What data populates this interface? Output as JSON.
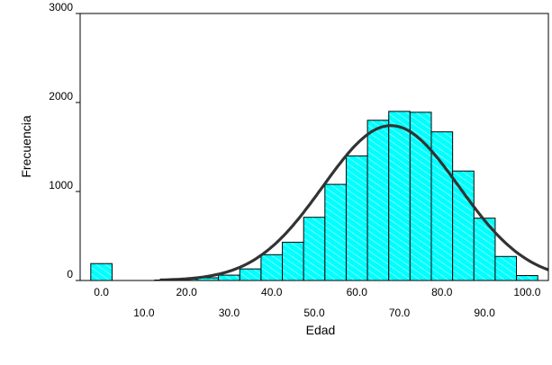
{
  "chart_data": {
    "type": "bar",
    "xlabel": "Edad",
    "ylabel": "Frecuencia",
    "xlim": [
      -5,
      105
    ],
    "ylim": [
      0,
      3000
    ],
    "y_ticks": [
      {
        "value": 3000,
        "label": "3000"
      },
      {
        "value": 2000,
        "label": "2000"
      },
      {
        "value": 1000,
        "label": "1000"
      },
      {
        "value": 0,
        "label": "0"
      }
    ],
    "x_ticks_row1": [
      {
        "value": 0,
        "label": "0.0"
      },
      {
        "value": 20,
        "label": "20.0"
      },
      {
        "value": 40,
        "label": "40.0"
      },
      {
        "value": 60,
        "label": "60.0"
      },
      {
        "value": 80,
        "label": "80.0"
      },
      {
        "value": 100,
        "label": "100.0"
      }
    ],
    "x_ticks_row2": [
      {
        "value": 10,
        "label": "10.0"
      },
      {
        "value": 30,
        "label": "30.0"
      },
      {
        "value": 50,
        "label": "50.0"
      },
      {
        "value": 70,
        "label": "70.0"
      },
      {
        "value": 90,
        "label": "90.0"
      }
    ],
    "bin_width": 5,
    "bars": [
      {
        "x": 0,
        "value": 190
      },
      {
        "x": 5,
        "value": 0
      },
      {
        "x": 10,
        "value": 0
      },
      {
        "x": 15,
        "value": 5
      },
      {
        "x": 20,
        "value": 15
      },
      {
        "x": 25,
        "value": 30
      },
      {
        "x": 30,
        "value": 60
      },
      {
        "x": 35,
        "value": 130
      },
      {
        "x": 40,
        "value": 290
      },
      {
        "x": 45,
        "value": 430
      },
      {
        "x": 50,
        "value": 710
      },
      {
        "x": 55,
        "value": 1080
      },
      {
        "x": 60,
        "value": 1400
      },
      {
        "x": 65,
        "value": 1800
      },
      {
        "x": 70,
        "value": 1900
      },
      {
        "x": 75,
        "value": 1890
      },
      {
        "x": 80,
        "value": 1670
      },
      {
        "x": 85,
        "value": 1230
      },
      {
        "x": 90,
        "value": 700
      },
      {
        "x": 95,
        "value": 270
      },
      {
        "x": 100,
        "value": 55
      }
    ],
    "normal_curve": {
      "mean": 68,
      "sd": 16,
      "peak": 1740,
      "x_start": 14,
      "x_end": 106
    },
    "colors": {
      "bar_fill": "#00ffff",
      "bar_stroke": "#000000",
      "hatch": "#ffffff",
      "curve": "#333333"
    }
  }
}
